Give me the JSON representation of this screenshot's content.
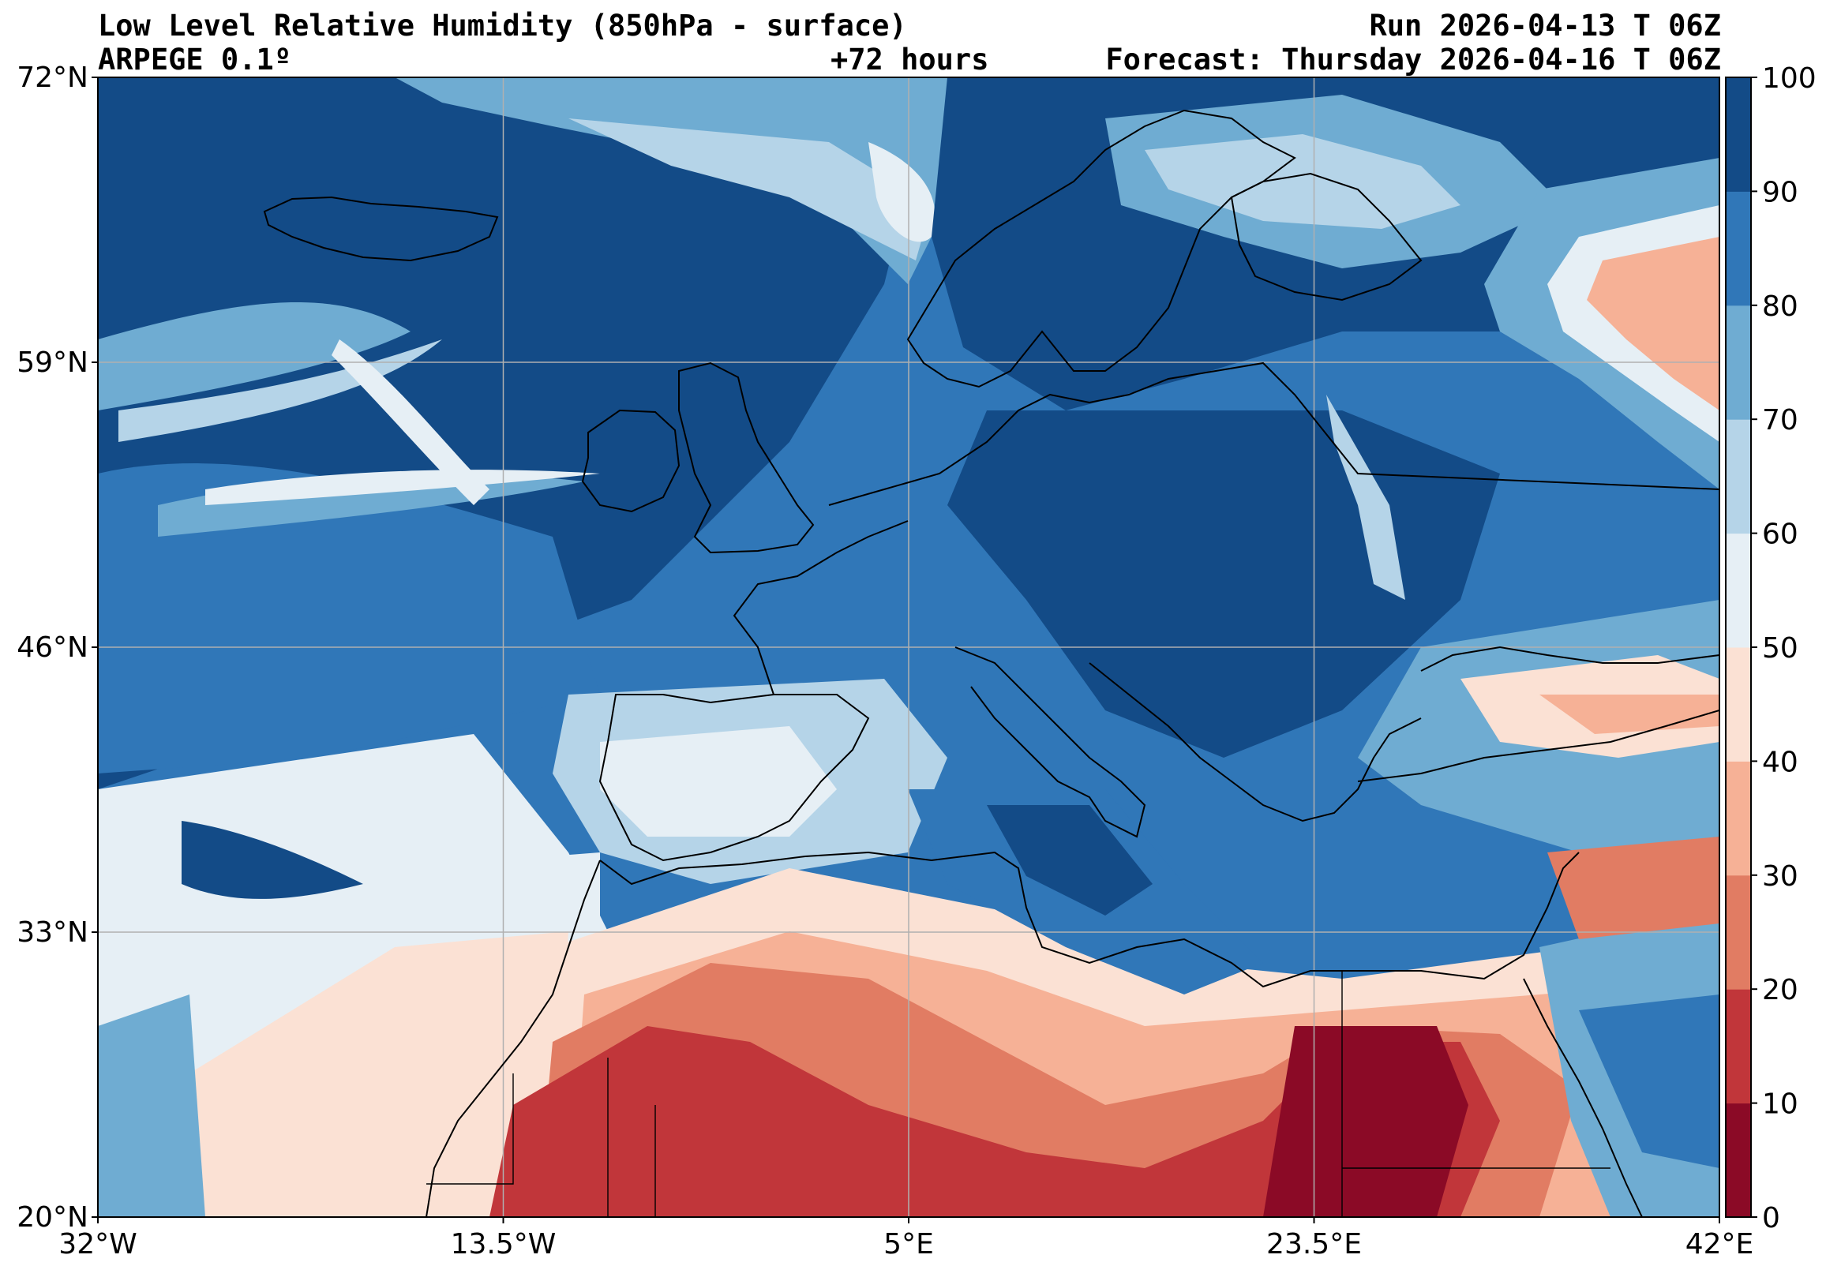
{
  "header": {
    "title": "Low Level Relative Humidity (850hPa - surface)",
    "model": "ARPEGE 0.1º",
    "lead_time": "+72 hours",
    "run": "Run 2026-04-13 T 06Z",
    "forecast": "Forecast: Thursday 2026-04-16 T 06Z"
  },
  "map": {
    "projection": "plate carree",
    "lon_range": [
      -32,
      42
    ],
    "lat_range": [
      20,
      72
    ],
    "lat_ticks": [
      {
        "value": 72,
        "label": "72°N"
      },
      {
        "value": 59,
        "label": "59°N"
      },
      {
        "value": 46,
        "label": "46°N"
      },
      {
        "value": 33,
        "label": "33°N"
      },
      {
        "value": 20,
        "label": "20°N"
      }
    ],
    "lon_ticks": [
      {
        "value": -32,
        "label": "32°W"
      },
      {
        "value": -13.5,
        "label": "13.5°W"
      },
      {
        "value": 5,
        "label": "5°E"
      },
      {
        "value": 23.5,
        "label": "23.5°E"
      },
      {
        "value": 42,
        "label": "42°E"
      }
    ],
    "gridlines": true,
    "grid_color": "#b0b0b0",
    "coastline_color": "#000000"
  },
  "colorbar": {
    "levels": [
      0,
      10,
      20,
      30,
      40,
      50,
      60,
      70,
      80,
      90,
      100
    ],
    "tick_labels": [
      "0",
      "10",
      "20",
      "30",
      "40",
      "50",
      "60",
      "70",
      "80",
      "90",
      "100"
    ],
    "colors": [
      "#8b0a26",
      "#c1363a",
      "#e17c63",
      "#f6b196",
      "#fbe1d4",
      "#e6eff5",
      "#b5d4e8",
      "#6facd2",
      "#3077b8",
      "#134b87"
    ]
  }
}
